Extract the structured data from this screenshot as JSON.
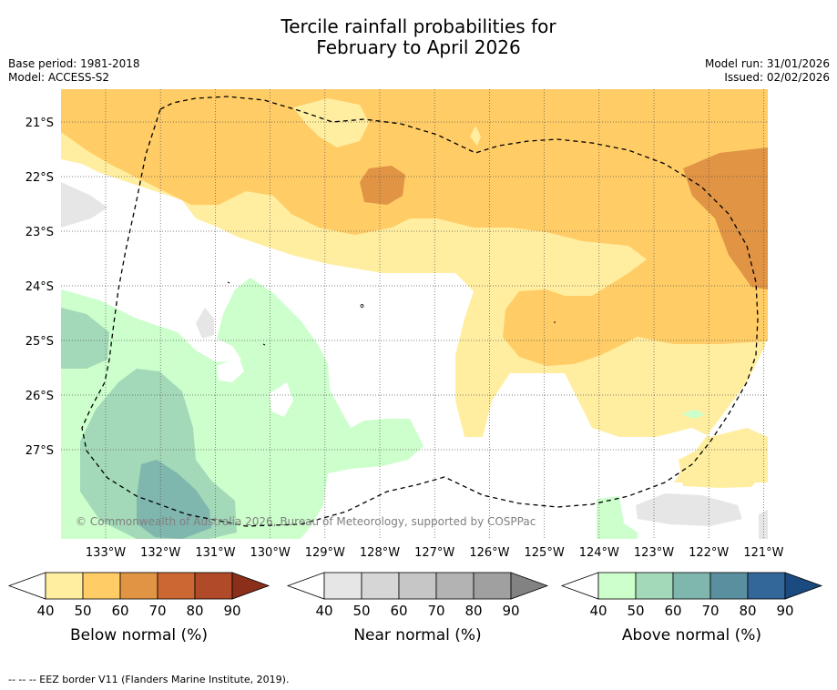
{
  "title_line1": "Tercile rainfall probabilities for",
  "title_line2": "February to April 2026",
  "base_period": "Base period: 1981-2018",
  "model": "Model: ACCESS-S2",
  "model_run": "Model run: 31/01/2026",
  "issued": "Issued: 02/02/2026",
  "copyright": "© Commonwealth of Australia 2026, Bureau of Meteorology, supported by COSPPac",
  "lat_labels": [
    "21°S",
    "22°S",
    "23°S",
    "24°S",
    "25°S",
    "26°S",
    "27°S"
  ],
  "lon_labels": [
    "133°W",
    "132°W",
    "131°W",
    "130°W",
    "129°W",
    "128°W",
    "127°W",
    "126°W",
    "125°W",
    "124°W",
    "123°W",
    "122°W",
    "121°W"
  ],
  "legends": [
    {
      "title": "Below normal (%)",
      "ticks": [
        "40",
        "50",
        "60",
        "70",
        "80",
        "90"
      ],
      "colors": [
        "#ffeea0",
        "#ffcc66",
        "#e09444",
        "#cc6633",
        "#b04a28",
        "#8c2f1a"
      ]
    },
    {
      "title": "Near normal (%)",
      "ticks": [
        "40",
        "50",
        "60",
        "70",
        "80",
        "90"
      ],
      "colors": [
        "#e6e6e6",
        "#d6d6d6",
        "#c6c6c6",
        "#b3b3b3",
        "#a0a0a0",
        "#828282"
      ]
    },
    {
      "title": "Above normal (%)",
      "ticks": [
        "40",
        "50",
        "60",
        "70",
        "80",
        "90"
      ],
      "colors": [
        "#ccffcc",
        "#a3d9b8",
        "#7fb6ae",
        "#5a8fa0",
        "#336699",
        "#1a4a80"
      ]
    }
  ],
  "footnote": "--  --  -- EEZ border V11 (Flanders Marine Institute, 2019)."
}
